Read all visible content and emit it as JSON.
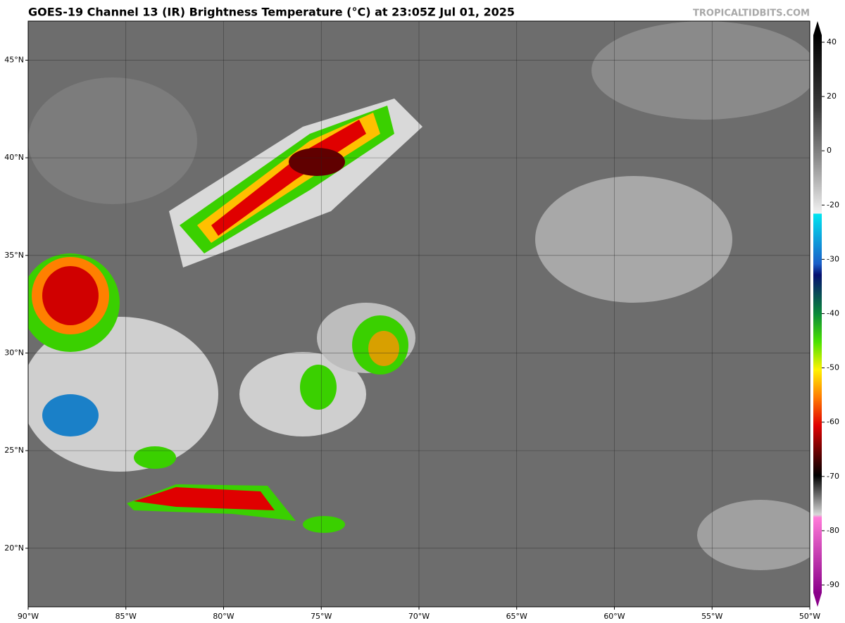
{
  "header": {
    "title": "GOES-19 Channel 13 (IR) Brightness Temperature (°C) at 23:05Z Jul 01, 2025",
    "source": "TROPICALTIDBITS.COM"
  },
  "map": {
    "lon_range": [
      -90,
      -50
    ],
    "lat_range": [
      17,
      47
    ],
    "lon_ticks": [
      {
        "value": -90,
        "label": "90°W"
      },
      {
        "value": -85,
        "label": "85°W"
      },
      {
        "value": -80,
        "label": "80°W"
      },
      {
        "value": -75,
        "label": "75°W"
      },
      {
        "value": -70,
        "label": "70°W"
      },
      {
        "value": -65,
        "label": "65°W"
      },
      {
        "value": -60,
        "label": "60°W"
      },
      {
        "value": -55,
        "label": "55°W"
      },
      {
        "value": -50,
        "label": "50°W"
      }
    ],
    "lat_ticks": [
      {
        "value": 20,
        "label": "20°N"
      },
      {
        "value": 25,
        "label": "25°N"
      },
      {
        "value": 30,
        "label": "30°N"
      },
      {
        "value": 35,
        "label": "35°N"
      },
      {
        "value": 40,
        "label": "40°N"
      },
      {
        "value": 45,
        "label": "45°N"
      }
    ]
  },
  "colorbar": {
    "ticks": [
      40,
      20,
      0,
      -20,
      -30,
      -40,
      -50,
      -60,
      -70,
      -80,
      -90
    ]
  }
}
